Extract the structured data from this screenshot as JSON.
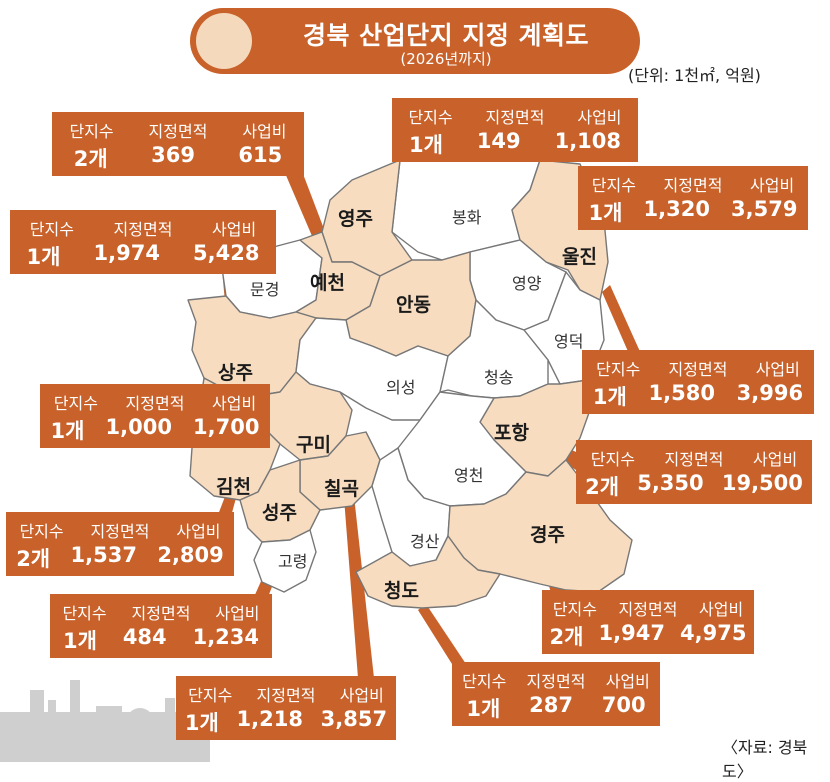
{
  "title": "경북 산업단지 지정 계획도",
  "subtitle": "(2026년까지)",
  "unit": "(단위: 1천㎡, 억원)",
  "source": "〈자료: 경북도〉",
  "headers": {
    "count": "단지수",
    "area": "지정면적",
    "cost": "사업비"
  },
  "colors": {
    "accent": "#c8612a",
    "highlight_region": "#f7dcc0",
    "plain_region": "#ffffff",
    "border": "#777777"
  },
  "regions": [
    {
      "name": "영주",
      "highlighted": true
    },
    {
      "name": "봉화",
      "highlighted": false
    },
    {
      "name": "예천",
      "highlighted": true
    },
    {
      "name": "문경",
      "highlighted": false
    },
    {
      "name": "안동",
      "highlighted": true
    },
    {
      "name": "영양",
      "highlighted": false
    },
    {
      "name": "울진",
      "highlighted": true
    },
    {
      "name": "영덕",
      "highlighted": false
    },
    {
      "name": "상주",
      "highlighted": true
    },
    {
      "name": "의성",
      "highlighted": false
    },
    {
      "name": "청송",
      "highlighted": false
    },
    {
      "name": "포항",
      "highlighted": true
    },
    {
      "name": "구미",
      "highlighted": true
    },
    {
      "name": "김천",
      "highlighted": true
    },
    {
      "name": "칠곡",
      "highlighted": true
    },
    {
      "name": "영천",
      "highlighted": false
    },
    {
      "name": "성주",
      "highlighted": true
    },
    {
      "name": "경산",
      "highlighted": false
    },
    {
      "name": "경주",
      "highlighted": true
    },
    {
      "name": "고령",
      "highlighted": false
    },
    {
      "name": "청도",
      "highlighted": true
    }
  ],
  "boxes": [
    {
      "region": "예천",
      "count": "2개",
      "area": "369",
      "cost": "615"
    },
    {
      "region": "영주",
      "count": "1개",
      "area": "149",
      "cost": "1,108"
    },
    {
      "region": "문경",
      "count": "1개",
      "area": "1,974",
      "cost": "5,428"
    },
    {
      "region": "울진",
      "count": "1개",
      "area": "1,320",
      "cost": "3,579"
    },
    {
      "region": "영덕",
      "count": "1개",
      "area": "1,580",
      "cost": "3,996"
    },
    {
      "region": "구미",
      "count": "1개",
      "area": "1,000",
      "cost": "1,700"
    },
    {
      "region": "포항",
      "count": "2개",
      "area": "5,350",
      "cost": "19,500"
    },
    {
      "region": "김천",
      "count": "2개",
      "area": "1,537",
      "cost": "2,809"
    },
    {
      "region": "경주",
      "count": "2개",
      "area": "1,947",
      "cost": "4,975"
    },
    {
      "region": "성주",
      "count": "1개",
      "area": "484",
      "cost": "1,234"
    },
    {
      "region": "청도",
      "count": "1개",
      "area": "287",
      "cost": "700"
    },
    {
      "region": "칠곡",
      "count": "1개",
      "area": "1,218",
      "cost": "3,857"
    }
  ]
}
